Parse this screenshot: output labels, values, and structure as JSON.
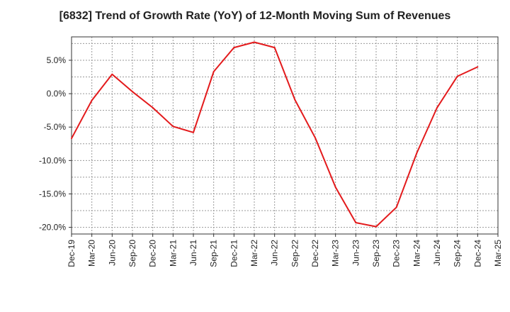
{
  "chart_data": {
    "type": "line",
    "title": "[6832]  Trend of Growth Rate (YoY) of 12-Month Moving Sum of Revenues",
    "xlabel": "",
    "ylabel": "",
    "x": [
      "Dec-19",
      "Mar-20",
      "Jun-20",
      "Sep-20",
      "Dec-20",
      "Mar-21",
      "Jun-21",
      "Sep-21",
      "Dec-21",
      "Mar-22",
      "Jun-22",
      "Sep-22",
      "Dec-22",
      "Mar-23",
      "Jun-23",
      "Sep-23",
      "Dec-23",
      "Mar-24",
      "Jun-24",
      "Sep-24",
      "Dec-24",
      "Mar-25"
    ],
    "series": [
      {
        "values": [
          -6.7,
          -1.0,
          2.9,
          0.3,
          -2.1,
          -4.9,
          -5.8,
          3.3,
          6.9,
          7.7,
          6.9,
          -0.9,
          -6.6,
          -14.0,
          -19.3,
          -19.9,
          -17.0,
          -8.9,
          -2.1,
          2.6,
          4.0,
          null
        ]
      }
    ],
    "yticks": [
      {
        "value": 5.0,
        "label": "5.0%"
      },
      {
        "value": 0.0,
        "label": "0.0%"
      },
      {
        "value": -5.0,
        "label": "-5.0%"
      },
      {
        "value": -10.0,
        "label": "-10.0%"
      },
      {
        "value": -15.0,
        "label": "-15.0%"
      },
      {
        "value": -20.0,
        "label": "-20.0%"
      }
    ],
    "ylim": [
      -21.0,
      8.5
    ],
    "grid": true,
    "colors": {
      "line": "#e31a1c",
      "grid": "#999999",
      "axis": "#333333"
    }
  }
}
